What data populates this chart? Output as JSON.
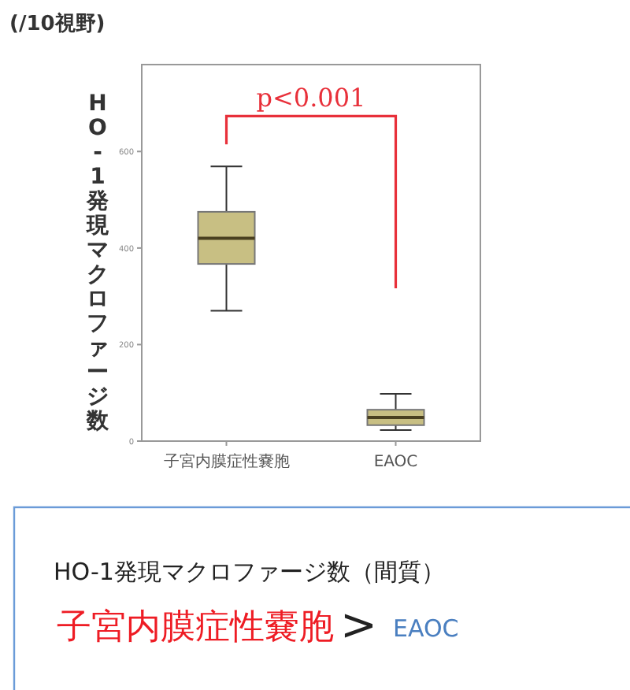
{
  "chart_data": {
    "type": "box",
    "ylabel": "HO-1発現マクロファージ数",
    "categories": [
      "子宮内膜症性嚢胞",
      "EAOC"
    ],
    "color": "#c8bf83",
    "boxes": [
      {
        "low": 270,
        "q1": 367,
        "median": 420,
        "q3": 475,
        "high": 569
      },
      {
        "low": 23,
        "q1": 33,
        "median": 49,
        "q3": 65,
        "high": 98
      }
    ],
    "ylim": [
      0,
      780
    ],
    "yticks": [
      0,
      200,
      400,
      600
    ],
    "grid": false,
    "annotations": [
      "(/10視野)",
      "p<0.001",
      "HO-1発現マクロファージ数（間質）",
      "子宮内膜症性嚢胞",
      ">",
      "EAOC"
    ]
  }
}
